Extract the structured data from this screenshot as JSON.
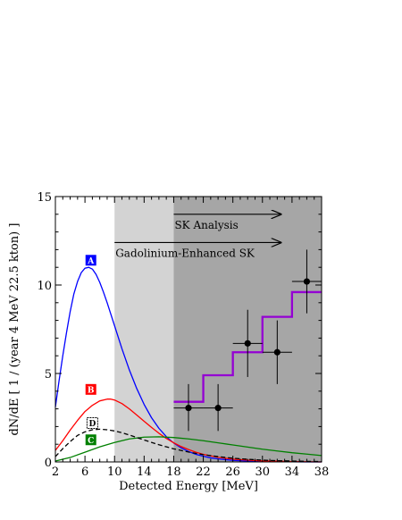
{
  "chart_data": {
    "type": "line",
    "title": "",
    "xlabel": "Detected Energy [MeV]",
    "ylabel": "dN/dE  [ 1 / (year  4 MeV  22.5 kton) ]",
    "xlim": [
      2,
      38
    ],
    "ylim": [
      0,
      15
    ],
    "x_ticks": [
      "2",
      "6",
      "10",
      "14",
      "18",
      "22",
      "26",
      "30",
      "34",
      "38"
    ],
    "y_ticks": [
      "0",
      "5",
      "10",
      "15"
    ],
    "shaded_regions": [
      {
        "x": [
          10,
          18
        ],
        "color": "#d3d3d3"
      },
      {
        "x": [
          18,
          38
        ],
        "color": "#a6a6a6"
      }
    ],
    "annotations": [
      {
        "text": "SK Analysis",
        "arrow_from": 18,
        "arrow_to": 32.5,
        "y": 14.0
      },
      {
        "text": "Gadolinium-Enhanced SK",
        "arrow_from": 10,
        "arrow_to": 32.5,
        "y": 12.4
      }
    ],
    "series": [
      {
        "label": "A",
        "color": "#0000ff",
        "label_bg": "#0000ff",
        "label_fg": "#ffffff",
        "label_at": [
          6.8,
          11.4
        ],
        "x": [
          2,
          2.5,
          3,
          3.5,
          4,
          4.5,
          5,
          5.5,
          6,
          6.5,
          7,
          7.5,
          8,
          8.5,
          9,
          9.5,
          10,
          11,
          12,
          13,
          14,
          15,
          16,
          17,
          18,
          19,
          20,
          21,
          22,
          23,
          24,
          26,
          28,
          30,
          32,
          34,
          36,
          38
        ],
        "values": [
          3.1,
          4.6,
          6.0,
          7.3,
          8.5,
          9.5,
          10.2,
          10.7,
          10.95,
          11.0,
          10.9,
          10.6,
          10.15,
          9.6,
          9.0,
          8.35,
          7.7,
          6.4,
          5.2,
          4.15,
          3.25,
          2.5,
          1.9,
          1.43,
          1.07,
          0.8,
          0.59,
          0.43,
          0.32,
          0.23,
          0.17,
          0.09,
          0.05,
          0.03,
          0.02,
          0.01,
          0.0,
          0.0
        ]
      },
      {
        "label": "B",
        "color": "#ff0000",
        "label_bg": "#ff0000",
        "label_fg": "#ffffff",
        "label_at": [
          6.8,
          4.1
        ],
        "x": [
          2,
          3,
          4,
          5,
          6,
          7,
          8,
          9,
          9.5,
          10,
          11,
          12,
          13,
          14,
          15,
          16,
          17,
          18,
          19,
          20,
          21,
          22,
          24,
          26,
          28,
          30,
          32,
          34,
          36,
          38
        ],
        "values": [
          0.65,
          1.2,
          1.8,
          2.35,
          2.85,
          3.2,
          3.45,
          3.55,
          3.55,
          3.5,
          3.3,
          3.0,
          2.65,
          2.3,
          1.95,
          1.62,
          1.33,
          1.08,
          0.87,
          0.7,
          0.55,
          0.43,
          0.26,
          0.16,
          0.1,
          0.06,
          0.04,
          0.02,
          0.01,
          0.0
        ]
      },
      {
        "label": "C",
        "color": "#008000",
        "label_bg": "#008000",
        "label_fg": "#ffffff",
        "label_at": [
          6.8,
          1.25
        ],
        "x": [
          2,
          4,
          6,
          8,
          10,
          12,
          14,
          16,
          18,
          20,
          22,
          24,
          26,
          28,
          30,
          32,
          34,
          36,
          38
        ],
        "values": [
          0.05,
          0.25,
          0.55,
          0.85,
          1.1,
          1.3,
          1.4,
          1.42,
          1.38,
          1.3,
          1.2,
          1.08,
          0.96,
          0.84,
          0.72,
          0.62,
          0.52,
          0.44,
          0.36
        ]
      },
      {
        "label": "D",
        "color": "#000000",
        "dashed": true,
        "label_bg": "#ffffff",
        "label_fg": "#000000",
        "label_at": [
          7.0,
          2.2
        ],
        "x": [
          2,
          3,
          4,
          5,
          6,
          7,
          8,
          9,
          10,
          11,
          12,
          13,
          14,
          16,
          18,
          20,
          22,
          24,
          26,
          28,
          30,
          32,
          34,
          36,
          38
        ],
        "values": [
          0.3,
          0.75,
          1.15,
          1.5,
          1.7,
          1.82,
          1.85,
          1.82,
          1.75,
          1.65,
          1.52,
          1.38,
          1.24,
          0.97,
          0.74,
          0.56,
          0.41,
          0.3,
          0.21,
          0.15,
          0.1,
          0.07,
          0.05,
          0.03,
          0.02
        ]
      }
    ],
    "step_series": {
      "color": "#9400d3",
      "edges": [
        18,
        22,
        26,
        30,
        34,
        38
      ],
      "values": [
        3.4,
        4.9,
        6.2,
        8.2,
        9.6
      ]
    },
    "data_points": [
      {
        "x": 20,
        "y": 3.05,
        "xerr": 2,
        "yerr_low": 1.3,
        "yerr_high": 1.35
      },
      {
        "x": 24,
        "y": 3.05,
        "xerr": 2,
        "yerr_low": 1.3,
        "yerr_high": 1.35
      },
      {
        "x": 28,
        "y": 6.7,
        "xerr": 2,
        "yerr_low": 1.9,
        "yerr_high": 1.9
      },
      {
        "x": 32,
        "y": 6.2,
        "xerr": 2,
        "yerr_low": 1.8,
        "yerr_high": 1.8
      },
      {
        "x": 36,
        "y": 10.2,
        "xerr": 2,
        "yerr_low": 1.8,
        "yerr_high": 1.8
      }
    ]
  }
}
